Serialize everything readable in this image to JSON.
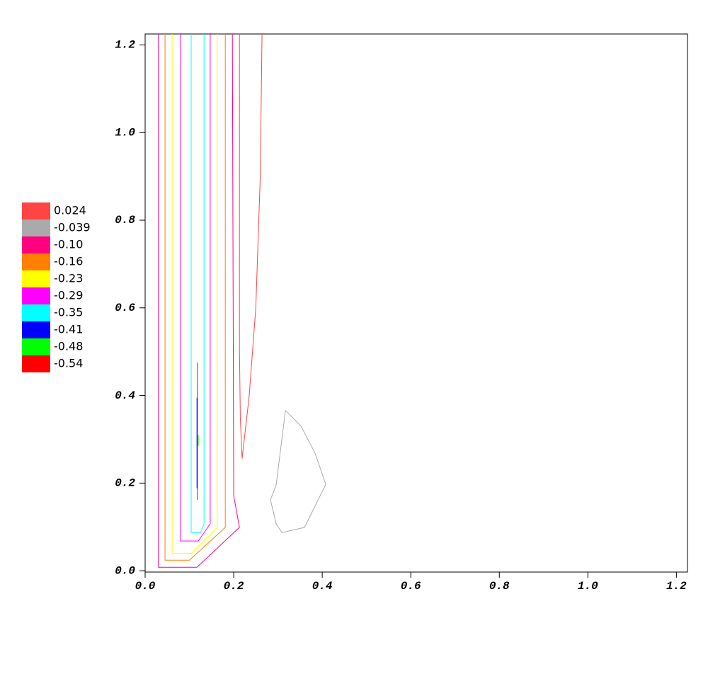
{
  "chart_data": {
    "type": "contour",
    "xlim": [
      0,
      1.225
    ],
    "ylim": [
      -0.003,
      1.225
    ],
    "xticks": [
      {
        "value": 0,
        "label": "0.0"
      },
      0.2,
      0.4,
      0.6,
      0.8,
      {
        "value": 1,
        "label": "1.0"
      },
      1.2
    ],
    "yticks": [
      {
        "value": 0,
        "label": "0.0"
      },
      0.2,
      0.4,
      0.6,
      0.8,
      {
        "value": 1,
        "label": "1.0"
      },
      1.2
    ],
    "series": [
      {
        "name": "0.024",
        "level": 0.024,
        "color": "#ff4444",
        "x": [
          0.264,
          0.26,
          0.25,
          0.235,
          0.224,
          0.219,
          0.215,
          0.213,
          0.213
        ],
        "y": [
          1.225,
          0.9,
          0.6,
          0.398,
          0.301,
          0.256,
          0.35,
          0.511,
          1.225
        ]
      },
      {
        "name": "-0.039",
        "level": -0.039,
        "color": "#aaaaaa",
        "x": [
          0.317,
          0.352,
          0.384,
          0.408,
          0.36,
          0.309,
          0.296,
          0.283,
          0.296,
          0.317
        ],
        "y": [
          0.366,
          0.33,
          0.268,
          0.197,
          0.099,
          0.087,
          0.107,
          0.162,
          0.196,
          0.366
        ]
      },
      {
        "name": "-0.10",
        "level": -0.1,
        "color": "#ff0080",
        "x": [
          0.03,
          0.03,
          0.117,
          0.213,
          0.2,
          0.197
        ],
        "y": [
          1.225,
          0.008,
          0.008,
          0.099,
          0.171,
          1.225
        ]
      },
      {
        "name": "-0.16",
        "level": -0.16,
        "color": "#ff8000",
        "x": [
          0.045,
          0.045,
          0.1,
          0.181,
          0.181
        ],
        "y": [
          1.225,
          0.024,
          0.024,
          0.099,
          1.225
        ]
      },
      {
        "name": "-0.23",
        "level": -0.23,
        "color": "#ffff00",
        "x": [
          0.061,
          0.061,
          0.105,
          0.163,
          0.163
        ],
        "y": [
          1.225,
          0.04,
          0.04,
          0.099,
          1.225
        ]
      },
      {
        "name": "-0.29",
        "level": -0.29,
        "color": "#ff00ff",
        "x": [
          0.08,
          0.08,
          0.12,
          0.147,
          0.147
        ],
        "y": [
          1.225,
          0.068,
          0.068,
          0.107,
          1.225
        ]
      },
      {
        "name": "-0.35",
        "level": -0.35,
        "color": "#00ffff",
        "x": [
          0.104,
          0.104,
          0.125,
          0.133,
          0.133
        ],
        "y": [
          1.225,
          0.087,
          0.087,
          0.107,
          1.225
        ]
      },
      {
        "name": "-0.41",
        "level": -0.41,
        "color": "#0000ff",
        "x": [
          0.117,
          0.117
        ],
        "y": [
          0.395,
          0.188
        ]
      },
      {
        "name": "-0.48",
        "level": -0.48,
        "color": "#00ff00",
        "x": [
          0.12,
          0.12
        ],
        "y": [
          0.309,
          0.285
        ]
      },
      {
        "name": "-0.54",
        "level": -0.54,
        "color": "#ff0000",
        "x": [
          0.118,
          0.118
        ],
        "y": [
          0.475,
          0.162
        ]
      }
    ]
  }
}
